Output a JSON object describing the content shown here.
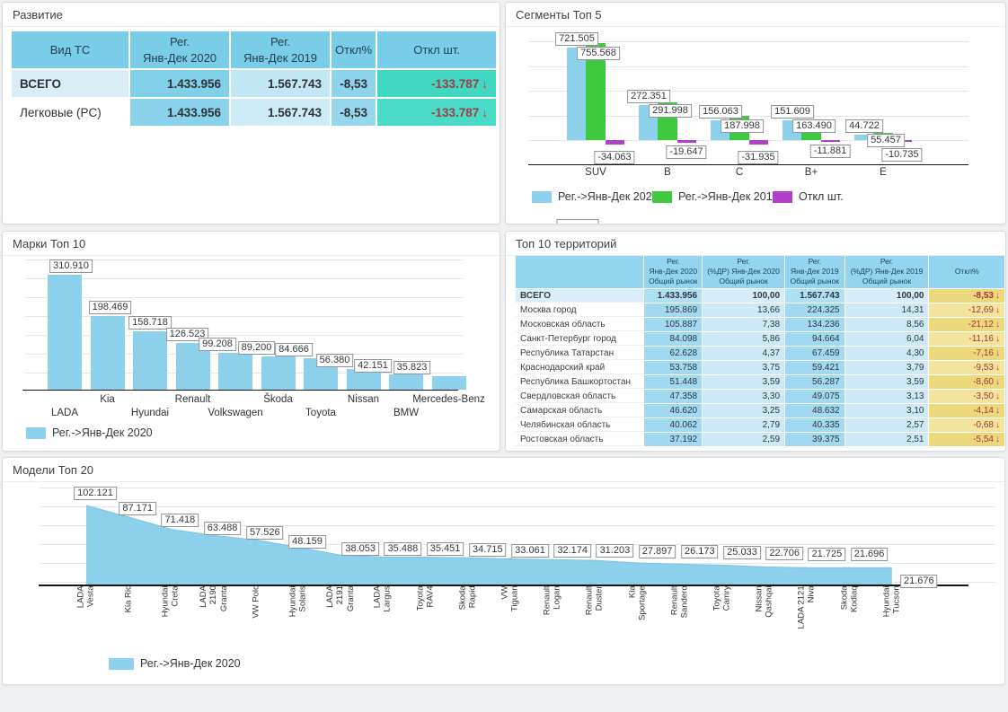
{
  "razvitie": {
    "title": "Развитие",
    "headers": [
      "Вид ТС",
      "Рег.\nЯнв-Дек 2020",
      "Рег.\nЯнв-Дек 2019",
      "Откл%",
      "Откл шт."
    ],
    "rows": [
      {
        "name": "ВСЕГО",
        "v2020": "1.433.956",
        "v2019": "1.567.743",
        "pct": "-8,53",
        "units": "-133.787",
        "arrow": "↓"
      },
      {
        "name": "Легковые (PC)",
        "v2020": "1.433.956",
        "v2019": "1.567.743",
        "pct": "-8,53",
        "units": "-133.787",
        "arrow": "↓"
      }
    ]
  },
  "segments": {
    "title": "Сегменты Топ 5",
    "legend": [
      "Рег.->Янв-Дек 2020",
      "Рег.->Янв-Дек 2019",
      "Откл шт."
    ]
  },
  "marks": {
    "title": "Марки Топ 10",
    "legend": [
      "Рег.->Янв-Дек 2020"
    ]
  },
  "territories": {
    "title": "Топ 10 территорий",
    "headers": [
      "",
      "Рег.\nЯнв-Дек 2020\nОбщий рынок",
      "Рег.\n(%ДР) Янв-Дек 2020\nОбщий рынок",
      "Рег.\nЯнв-Дек 2019\nОбщий рынок",
      "Рег.\n(%ДР) Янв-Дек 2019\nОбщий рынок",
      "Откл%"
    ],
    "rows": [
      {
        "name": "ВСЕГО",
        "v2020": "1.433.956",
        "p2020": "100,00",
        "v2019": "1.567.743",
        "p2019": "100,00",
        "otkl": "-8,53",
        "arrow": "↓"
      },
      {
        "name": "Москва город",
        "v2020": "195.869",
        "p2020": "13,66",
        "v2019": "224.325",
        "p2019": "14,31",
        "otkl": "-12,69",
        "arrow": "↓"
      },
      {
        "name": "Московская область",
        "v2020": "105.887",
        "p2020": "7,38",
        "v2019": "134.236",
        "p2019": "8,56",
        "otkl": "-21,12",
        "arrow": "↓"
      },
      {
        "name": "Санкт-Петербург город",
        "v2020": "84.098",
        "p2020": "5,86",
        "v2019": "94.664",
        "p2019": "6,04",
        "otkl": "-11,16",
        "arrow": "↓"
      },
      {
        "name": "Республика Татарстан",
        "v2020": "62.628",
        "p2020": "4,37",
        "v2019": "67.459",
        "p2019": "4,30",
        "otkl": "-7,16",
        "arrow": "↓"
      },
      {
        "name": "Краснодарский край",
        "v2020": "53.758",
        "p2020": "3,75",
        "v2019": "59.421",
        "p2019": "3,79",
        "otkl": "-9,53",
        "arrow": "↓"
      },
      {
        "name": "Республика Башкортостан",
        "v2020": "51.448",
        "p2020": "3,59",
        "v2019": "56.287",
        "p2019": "3,59",
        "otkl": "-8,60",
        "arrow": "↓"
      },
      {
        "name": "Свердловская область",
        "v2020": "47.358",
        "p2020": "3,30",
        "v2019": "49.075",
        "p2019": "3,13",
        "otkl": "-3,50",
        "arrow": "↓"
      },
      {
        "name": "Самарская область",
        "v2020": "46.620",
        "p2020": "3,25",
        "v2019": "48.632",
        "p2019": "3,10",
        "otkl": "-4,14",
        "arrow": "↓"
      },
      {
        "name": "Челябинская область",
        "v2020": "40.062",
        "p2020": "2,79",
        "v2019": "40.335",
        "p2019": "2,57",
        "otkl": "-0,68",
        "arrow": "↓"
      },
      {
        "name": "Ростовская область",
        "v2020": "37.192",
        "p2020": "2,59",
        "v2019": "39.375",
        "p2019": "2,51",
        "otkl": "-5,54",
        "arrow": "↓"
      }
    ]
  },
  "models": {
    "title": "Модели Топ 20",
    "legend": [
      "Рег.->Янв-Дек 2020"
    ]
  },
  "colors": {
    "bar_blue": "#8dd0ec",
    "bar_green": "#3ec93e",
    "bar_purple": "#b040c8",
    "teal_cell_1": "#41d8c3",
    "teal_cell_2": "#49dbc7",
    "yellow_dark": "#ecd87c",
    "yellow_light": "#f2e49c",
    "red_text": "#a63a42",
    "value_col": "#a2d9f0",
    "pct_col": "#cde9f7",
    "value_col_total": "#aedff3",
    "pct_col_total": "#d6edf9"
  },
  "chart_data": [
    {
      "type": "bar",
      "title": "Сегменты Топ 5",
      "categories": [
        "SUV",
        "B",
        "C",
        "B+",
        "E"
      ],
      "series": [
        {
          "name": "Рег.->Янв-Дек 2020",
          "values": [
            721505,
            272351,
            156063,
            151609,
            44722
          ]
        },
        {
          "name": "Рег.->Янв-Дек 2019",
          "values": [
            755568,
            291998,
            187998,
            163490,
            55457
          ]
        },
        {
          "name": "Откл шт.",
          "values": [
            -34063,
            -19647,
            -31935,
            -11881,
            -10735
          ]
        }
      ],
      "legend_position": "bottom",
      "grid": true
    },
    {
      "type": "bar",
      "title": "Марки Топ 10",
      "categories": [
        "LADA",
        "Kia",
        "Hyundai",
        "Renault",
        "Volkswagen",
        "Škoda",
        "Toyota",
        "Nissan",
        "BMW",
        "Mercedes-Benz"
      ],
      "series": [
        {
          "name": "Рег.->Янв-Дек 2020",
          "values": [
            310910,
            198469,
            158718,
            126523,
            99208,
            89200,
            84666,
            56380,
            42151,
            35823
          ]
        }
      ],
      "legend_position": "bottom",
      "grid": true
    },
    {
      "type": "area",
      "title": "Модели Топ 20",
      "categories": [
        "LADA\nVesta",
        "Kia Rio",
        "Hyundai\nCreta",
        "LADA\n2190\nGranta",
        "VW Polo",
        "Hyundai\nSolaris",
        "LADA\n2191\nGranta",
        "LADA\nLargus",
        "Toyota\nRAV4",
        "Skoda\nRapid",
        "VW\nTiguan",
        "Renault\nLogan",
        "Renault\nDuster",
        "Kia\nSportage",
        "Renault\nSandero",
        "Toyota\nCamry",
        "Nissan\nQashqai",
        "LADA 2121\nNiva",
        "Skoda\nKodiaq",
        "Hyundai\nTucson"
      ],
      "series": [
        {
          "name": "Рег.->Янв-Дек 2020",
          "values": [
            102121,
            87171,
            71418,
            63488,
            57526,
            48159,
            38053,
            35488,
            35451,
            34715,
            33061,
            32174,
            31203,
            27897,
            26173,
            25033,
            22706,
            21725,
            21696,
            21676
          ]
        }
      ],
      "legend_position": "bottom",
      "grid": true
    }
  ]
}
